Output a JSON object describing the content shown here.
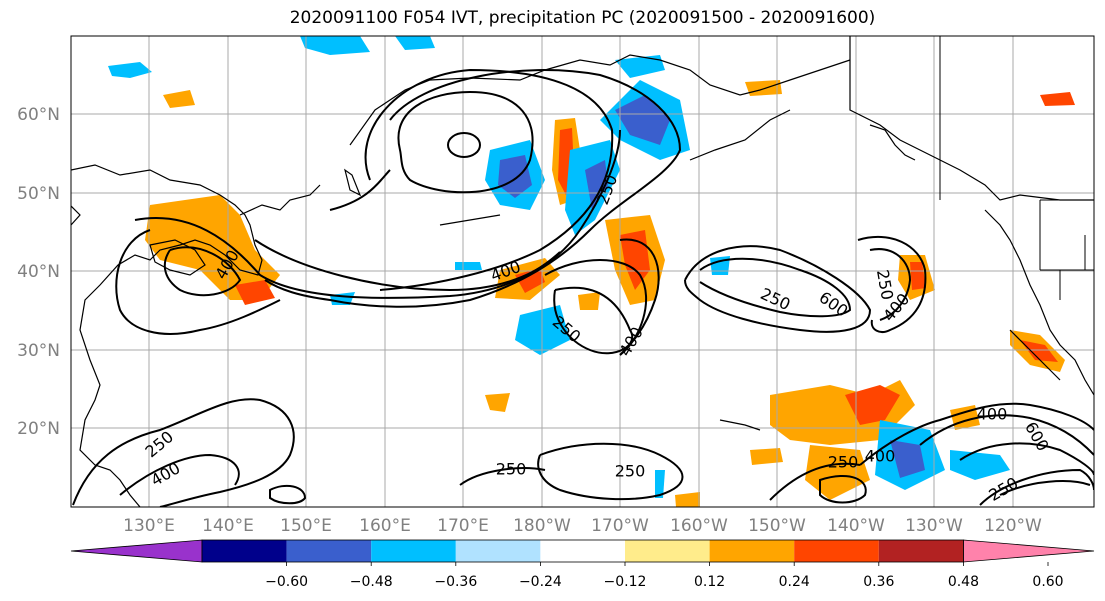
{
  "title": "2020091100 F054 IVT, precipitation PC (2020091500 - 2020091600)",
  "map": {
    "lat_labels": [
      "60°N",
      "50°N",
      "40°N",
      "30°N",
      "20°N"
    ],
    "lon_labels": [
      "130°E",
      "140°E",
      "150°E",
      "160°E",
      "170°E",
      "180°W",
      "170°W",
      "160°W",
      "150°W",
      "140°W",
      "130°W",
      "120°W"
    ],
    "contour_labels": [
      "400",
      "400",
      "250",
      "250",
      "400",
      "600",
      "250",
      "400",
      "250",
      "400",
      "250",
      "400",
      "250",
      "250",
      "250",
      "400",
      "600",
      "250"
    ],
    "colors": {
      "land_outline": "#000000",
      "grid": "#a9a9a9",
      "ivt_contour": "#000000"
    }
  },
  "colorbar": {
    "colors": [
      "#9932cc",
      "#00008b",
      "#3a5fcd",
      "#00bfff",
      "#b0e2ff",
      "#ffffff",
      "#ffec8b",
      "#ffa500",
      "#ff4500",
      "#b22222",
      "#ff82ab"
    ],
    "tick_labels": [
      "−0.60",
      "−0.48",
      "−0.36",
      "−0.24",
      "−0.12",
      "0.12",
      "0.24",
      "0.36",
      "0.48",
      "0.60"
    ]
  }
}
